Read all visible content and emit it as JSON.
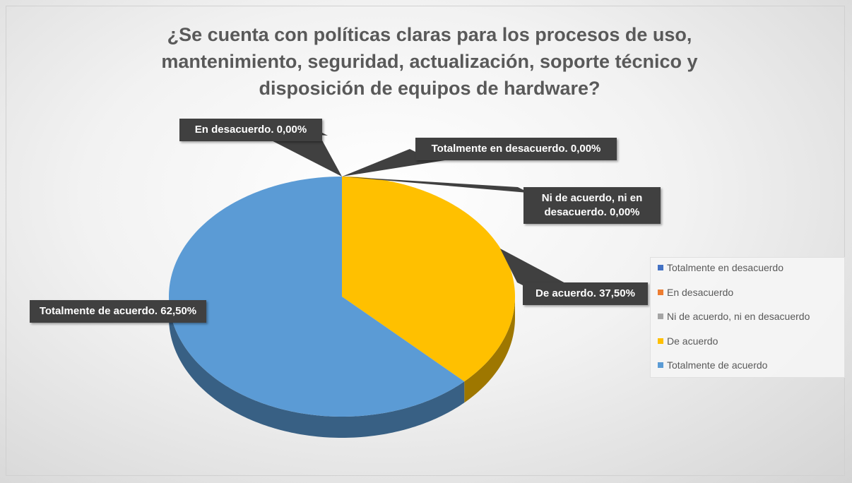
{
  "chart_data": {
    "type": "pie",
    "title": "¿Se cuenta con políticas claras para los procesos de uso, mantenimiento, seguridad, actualización, soporte técnico y disposición de equipos de hardware?",
    "categories": [
      "Totalmente en desacuerdo",
      "En desacuerdo",
      "Ni de acuerdo, ni en desacuerdo",
      "De acuerdo",
      "Totalmente de acuerdo"
    ],
    "values": [
      0,
      0,
      0,
      37.5,
      62.5
    ],
    "value_labels": [
      "Totalmente en desacuerdo. 0,00%",
      "En desacuerdo. 0,00%",
      "Ni de acuerdo, ni en desacuerdo. 0,00%",
      "De acuerdo. 37,50%",
      "Totalmente de acuerdo. 62,50%"
    ],
    "colors": [
      "#4472c4",
      "#ed7d31",
      "#a5a5a5",
      "#ffc000",
      "#5b9bd5"
    ],
    "legend": "right"
  }
}
